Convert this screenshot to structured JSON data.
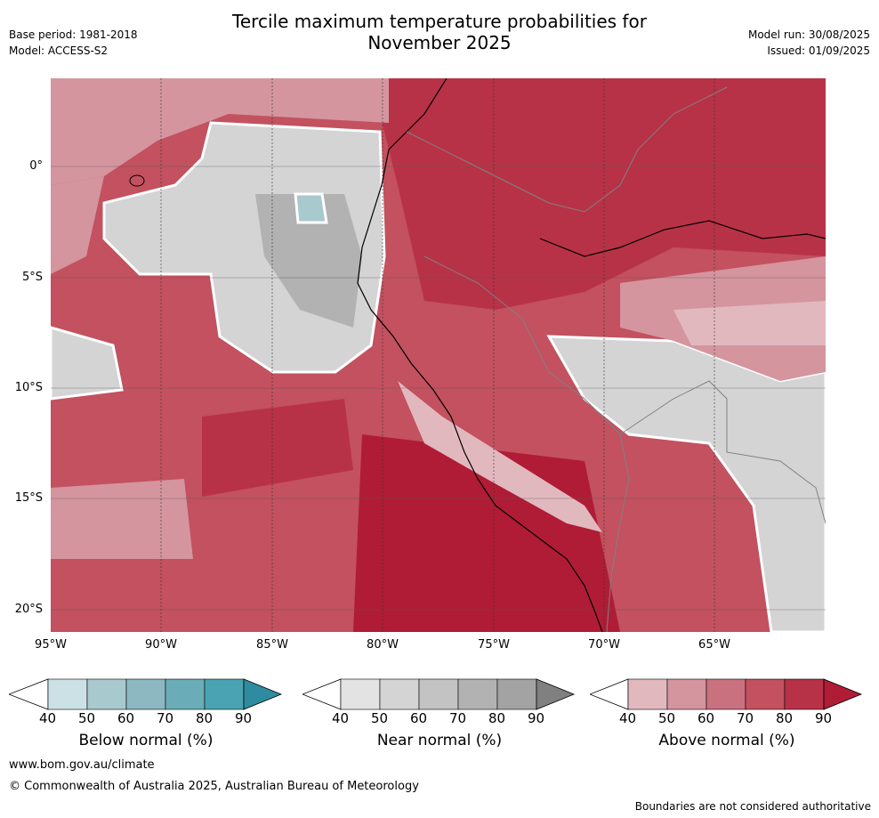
{
  "title": "Tercile maximum temperature probabilities for\nNovember 2025",
  "meta_left": {
    "line1": "Base period: 1981-2018",
    "line2": "Model: ACCESS-S2"
  },
  "meta_right": {
    "line1": "Model run: 30/08/2025",
    "line2": "Issued: 01/09/2025"
  },
  "lat_labels": [
    "0°",
    "5°S",
    "10°S",
    "15°S",
    "20°S"
  ],
  "lon_labels": [
    "95°W",
    "90°W",
    "85°W",
    "80°W",
    "75°W",
    "70°W",
    "65°W"
  ],
  "legends": [
    {
      "title": "Below normal (%)",
      "ticks": [
        "40",
        "50",
        "60",
        "70",
        "80",
        "90"
      ],
      "colors": [
        "#cbe1e6",
        "#a8c9ce",
        "#8db8c2",
        "#6aadb8",
        "#4aa3b2",
        "#2f8ca0"
      ]
    },
    {
      "title": "Near normal (%)",
      "ticks": [
        "40",
        "50",
        "60",
        "70",
        "80",
        "90"
      ],
      "colors": [
        "#e3e3e3",
        "#d4d4d4",
        "#c3c3c3",
        "#b2b2b2",
        "#a3a3a3",
        "#808080"
      ]
    },
    {
      "title": "Above normal (%)",
      "ticks": [
        "40",
        "50",
        "60",
        "70",
        "80",
        "90"
      ],
      "colors": [
        "#e2b8bf",
        "#d4959f",
        "#c9717f",
        "#c3515f",
        "#b83247",
        "#b01c35"
      ]
    }
  ],
  "footer": {
    "website": "www.bom.gov.au/climate",
    "copyright": "© Commonwealth of Australia 2025, Australian Bureau of Meteorology",
    "disclaimer": "Boundaries are not considered authoritative"
  }
}
